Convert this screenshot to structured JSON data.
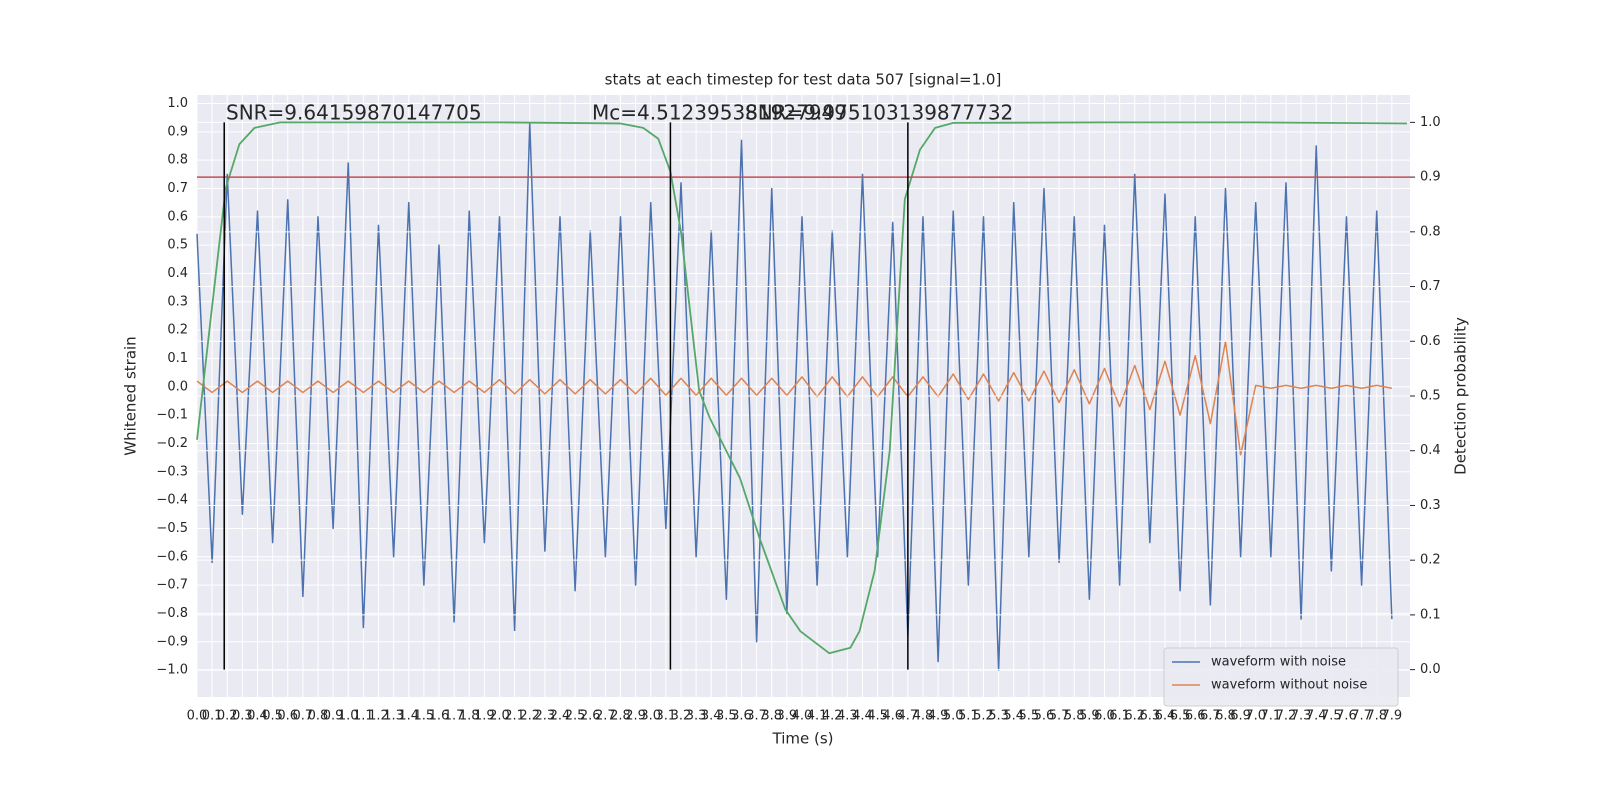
{
  "chart_data": {
    "type": "line",
    "title": "stats at each timestep for test data 507 [signal=1.0]",
    "xlabel": "Time (s)",
    "ylabel": "Whitened strain",
    "y2label": "Detection probability",
    "grid": true,
    "legend": "lower right",
    "xlim": [
      0,
      8.02
    ],
    "ylim": [
      -1.095,
      1.03
    ],
    "y2lim": [
      -0.05,
      1.05
    ],
    "xticks": [
      {
        "value": 0,
        "label": "0.0"
      },
      0.1,
      0.2,
      0.3,
      0.4,
      0.5,
      0.6,
      0.7,
      0.8,
      0.9,
      {
        "value": 1,
        "label": "1.0"
      },
      1.1,
      1.2,
      1.3,
      1.4,
      1.5,
      1.6,
      1.7,
      1.8,
      1.9,
      {
        "value": 2,
        "label": "2.0"
      },
      2.1,
      2.2,
      2.3,
      2.4,
      2.5,
      2.6,
      2.7,
      2.8,
      2.9,
      {
        "value": 3,
        "label": "3.0"
      },
      3.1,
      3.2,
      3.3,
      3.4,
      3.5,
      3.6,
      3.7,
      3.8,
      3.9,
      {
        "value": 4,
        "label": "4.0"
      },
      4.1,
      4.2,
      4.3,
      4.4,
      4.5,
      4.6,
      4.7,
      4.8,
      4.9,
      {
        "value": 5,
        "label": "5.0"
      },
      5.1,
      5.2,
      5.3,
      5.4,
      5.5,
      5.6,
      5.7,
      5.8,
      5.9,
      {
        "value": 6,
        "label": "6.0"
      },
      6.1,
      6.2,
      6.3,
      6.4,
      6.5,
      6.6,
      6.7,
      6.8,
      6.9,
      {
        "value": 7,
        "label": "7.0"
      },
      7.1,
      7.2,
      7.3,
      7.4,
      7.5,
      7.6,
      7.7,
      7.8,
      7.9
    ],
    "yticks": [
      {
        "value": 1,
        "label": "1.0"
      },
      0.9,
      0.8,
      0.7,
      0.6,
      0.5,
      0.4,
      0.3,
      0.2,
      0.1,
      {
        "value": 0,
        "label": "0.0"
      },
      {
        "value": -0.1,
        "label": "−0.1"
      },
      {
        "value": -0.2,
        "label": "−0.2"
      },
      {
        "value": -0.3,
        "label": "−0.3"
      },
      {
        "value": -0.4,
        "label": "−0.4"
      },
      {
        "value": -0.5,
        "label": "−0.5"
      },
      {
        "value": -0.6,
        "label": "−0.6"
      },
      {
        "value": -0.7,
        "label": "−0.7"
      },
      {
        "value": -0.8,
        "label": "−0.8"
      },
      {
        "value": -0.9,
        "label": "−0.9"
      },
      {
        "value": -1,
        "label": "−1.0"
      }
    ],
    "y2ticks": [
      {
        "value": 0,
        "label": "0.0"
      },
      0.1,
      0.2,
      0.3,
      0.4,
      0.5,
      0.6,
      0.7,
      0.8,
      0.9,
      {
        "value": 1,
        "label": "1.0"
      }
    ],
    "series": [
      {
        "name": "waveform with noise",
        "color": "#4c72b0",
        "x": [
          0,
          0.1,
          0.2,
          0.3,
          0.4,
          0.5,
          0.6,
          0.7,
          0.8,
          0.9,
          1,
          1.1,
          1.2,
          1.3,
          1.4,
          1.5,
          1.6,
          1.7,
          1.8,
          1.9,
          2,
          2.1,
          2.2,
          2.3,
          2.4,
          2.5,
          2.6,
          2.7,
          2.8,
          2.9,
          3,
          3.1,
          3.2,
          3.3,
          3.4,
          3.5,
          3.6,
          3.7,
          3.8,
          3.9,
          4,
          4.1,
          4.2,
          4.3,
          4.4,
          4.5,
          4.6,
          4.7,
          4.8,
          4.9,
          5,
          5.1,
          5.2,
          5.3,
          5.4,
          5.5,
          5.6,
          5.7,
          5.8,
          5.9,
          6,
          6.1,
          6.2,
          6.3,
          6.4,
          6.5,
          6.6,
          6.7,
          6.8,
          6.9,
          7,
          7.1,
          7.2,
          7.3,
          7.4,
          7.5,
          7.6,
          7.7,
          7.8,
          7.9
        ],
        "values": [
          0.54,
          -0.62,
          0.75,
          -0.45,
          0.62,
          -0.55,
          0.66,
          -0.74,
          0.6,
          -0.5,
          0.79,
          -0.85,
          0.57,
          -0.6,
          0.65,
          -0.7,
          0.5,
          -0.83,
          0.62,
          -0.55,
          0.6,
          -0.86,
          0.93,
          -0.58,
          0.6,
          -0.72,
          0.55,
          -0.6,
          0.6,
          -0.7,
          0.65,
          -0.5,
          0.72,
          -0.6,
          0.55,
          -0.75,
          0.87,
          -0.9,
          0.7,
          -0.8,
          0.6,
          -0.7,
          0.55,
          -0.6,
          0.75,
          -0.6,
          0.58,
          -0.88,
          0.6,
          -0.97,
          0.62,
          -0.7,
          0.6,
          -1.0,
          0.65,
          -0.6,
          0.7,
          -0.62,
          0.6,
          -0.75,
          0.57,
          -0.7,
          0.75,
          -0.55,
          0.68,
          -0.72,
          0.6,
          -0.77,
          0.7,
          -0.6,
          0.65,
          -0.6,
          0.72,
          -0.82,
          0.85,
          -0.65,
          0.6,
          -0.7,
          0.62,
          -0.82
        ]
      },
      {
        "name": "waveform without noise",
        "color": "#dd8452",
        "x": [
          0,
          0.1,
          0.2,
          0.3,
          0.4,
          0.5,
          0.6,
          0.7,
          0.8,
          0.9,
          1,
          1.1,
          1.2,
          1.3,
          1.4,
          1.5,
          1.6,
          1.7,
          1.8,
          1.9,
          2,
          2.1,
          2.2,
          2.3,
          2.4,
          2.5,
          2.6,
          2.7,
          2.8,
          2.9,
          3,
          3.1,
          3.2,
          3.3,
          3.4,
          3.5,
          3.6,
          3.7,
          3.8,
          3.9,
          4,
          4.1,
          4.2,
          4.3,
          4.4,
          4.5,
          4.6,
          4.7,
          4.8,
          4.9,
          5,
          5.1,
          5.2,
          5.3,
          5.4,
          5.5,
          5.6,
          5.7,
          5.8,
          5.9,
          6,
          6.1,
          6.2,
          6.3,
          6.4,
          6.5,
          6.6,
          6.7,
          6.8,
          6.9,
          7,
          7.1,
          7.2,
          7.3,
          7.4,
          7.5,
          7.6,
          7.7,
          7.8,
          7.9
        ],
        "values": [
          0.02,
          -0.02,
          0.02,
          -0.02,
          0.02,
          -0.02,
          0.02,
          -0.02,
          0.02,
          -0.02,
          0.02,
          -0.02,
          0.02,
          -0.02,
          0.02,
          -0.02,
          0.02,
          -0.02,
          0.02,
          -0.02,
          0.025,
          -0.025,
          0.025,
          -0.025,
          0.025,
          -0.025,
          0.025,
          -0.025,
          0.025,
          -0.025,
          0.03,
          -0.03,
          0.03,
          -0.03,
          0.03,
          -0.03,
          0.03,
          -0.03,
          0.03,
          -0.03,
          0.035,
          -0.035,
          0.035,
          -0.035,
          0.035,
          -0.035,
          0.035,
          -0.035,
          0.035,
          -0.035,
          0.045,
          -0.045,
          0.045,
          -0.05,
          0.05,
          -0.05,
          0.055,
          -0.055,
          0.06,
          -0.06,
          0.065,
          -0.07,
          0.075,
          -0.08,
          0.09,
          -0.1,
          0.11,
          -0.13,
          0.16,
          -0.24,
          0.005,
          -0.005,
          0.005,
          -0.005,
          0.005,
          -0.005,
          0.005,
          -0.005,
          0.005,
          -0.005
        ]
      },
      {
        "color": "#55a868",
        "axis": "y2",
        "x": [
          0,
          0.09,
          0.19,
          0.28,
          0.38,
          0.55,
          1,
          2,
          2.8,
          2.95,
          3.05,
          3.13,
          3.2,
          3.32,
          3.39,
          3.59,
          3.72,
          3.89,
          3.99,
          4.18,
          4.32,
          4.38,
          4.48,
          4.58,
          4.68,
          4.78,
          4.88,
          5,
          6,
          7,
          8
        ],
        "values": [
          0.42,
          0.64,
          0.88,
          0.96,
          0.99,
          1,
          1,
          1,
          0.998,
          0.99,
          0.97,
          0.91,
          0.8,
          0.51,
          0.46,
          0.35,
          0.24,
          0.11,
          0.07,
          0.03,
          0.04,
          0.07,
          0.18,
          0.4,
          0.86,
          0.95,
          0.99,
          0.999,
          1,
          1,
          0.998
        ]
      }
    ],
    "hlines": [
      {
        "y": 0.9,
        "axis": "y2",
        "color": "#c44e52"
      }
    ],
    "vlines": {
      "x": [
        0.18,
        3.13,
        4.7
      ],
      "ymin": 0,
      "ymax": 1,
      "axis": "y2",
      "color": "#000000"
    },
    "annotations": [
      "SNR=9.64159870147705",
      "Mc=4.512395381927949",
      "SNR=9.975103139877732"
    ]
  }
}
